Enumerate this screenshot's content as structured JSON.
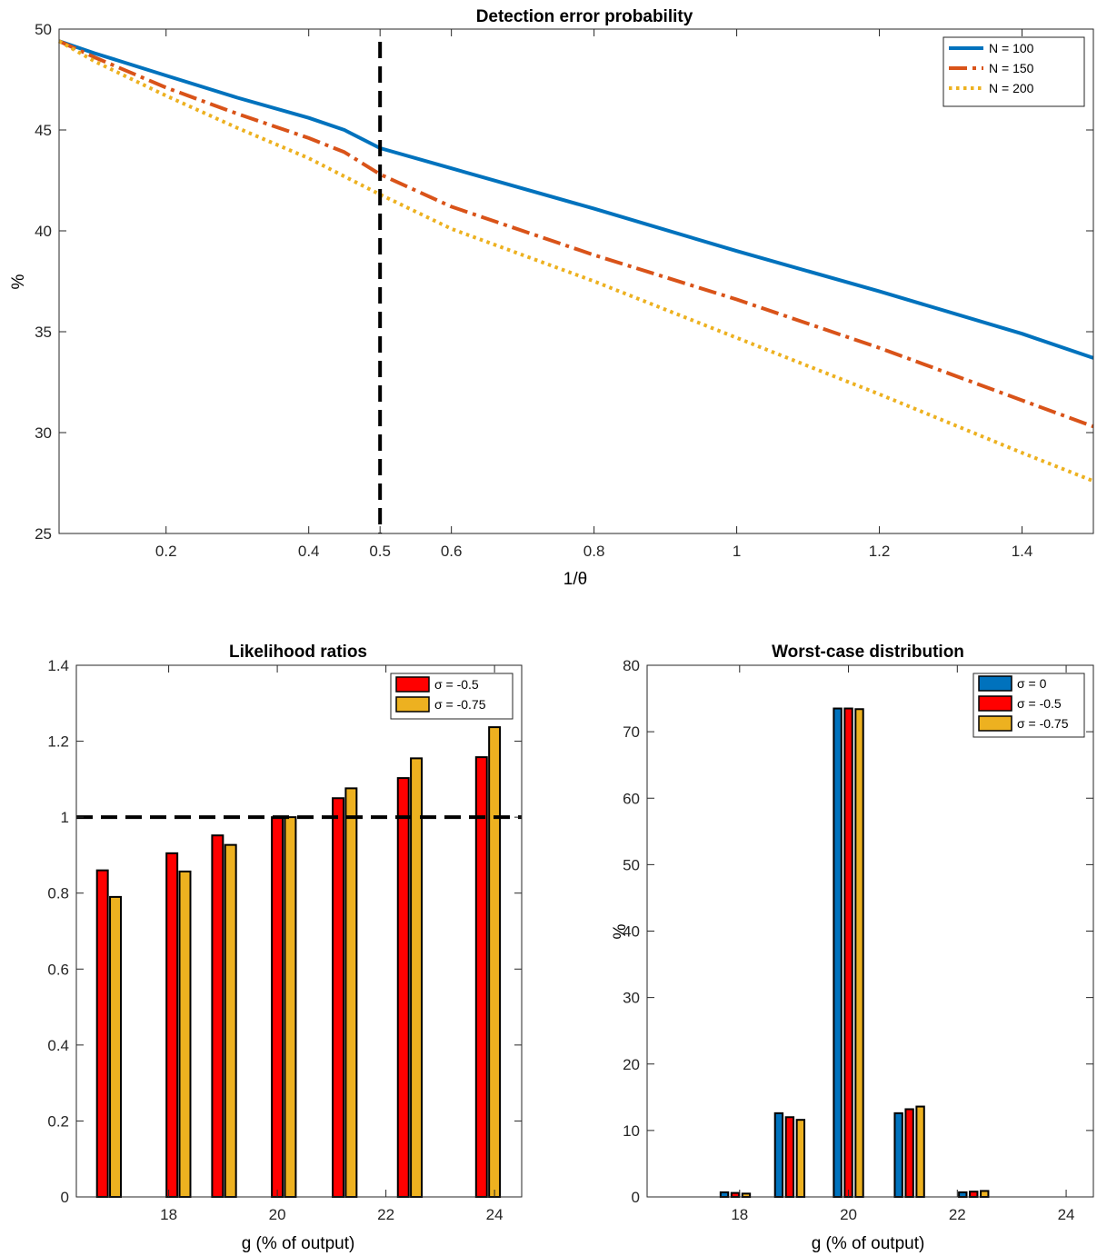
{
  "chart_data": [
    {
      "type": "line",
      "title": "Detection error probability",
      "xlabel": "1/θ",
      "ylabel": "%",
      "xlim": [
        0.05,
        1.5
      ],
      "ylim": [
        25,
        50
      ],
      "xticks": [
        0.2,
        0.4,
        0.5,
        0.6,
        0.8,
        1,
        1.2,
        1.4
      ],
      "xtick_labels": [
        "0.2",
        "0.4",
        "0.5",
        "0.6",
        "0.8",
        "1",
        "1.2",
        "1.4"
      ],
      "yticks": [
        25,
        30,
        35,
        40,
        45,
        50
      ],
      "ytick_labels": [
        "25",
        "30",
        "35",
        "40",
        "45",
        "50"
      ],
      "vline": 0.5,
      "legend_position": "top-right",
      "x": [
        0.05,
        0.1,
        0.2,
        0.3,
        0.4,
        0.45,
        0.5,
        0.6,
        0.8,
        1.0,
        1.2,
        1.4,
        1.5
      ],
      "series": [
        {
          "name": "N = 100",
          "color": "#0072BD",
          "dash": "solid",
          "values": [
            49.4,
            48.8,
            47.7,
            46.6,
            45.6,
            45.0,
            44.1,
            43.1,
            41.1,
            39.0,
            37.0,
            34.9,
            33.7
          ]
        },
        {
          "name": "N = 150",
          "color": "#D95319",
          "dash": "dashdot",
          "values": [
            49.4,
            48.6,
            47.1,
            45.8,
            44.6,
            43.9,
            42.8,
            41.2,
            38.8,
            36.6,
            34.2,
            31.6,
            30.3
          ]
        },
        {
          "name": "N = 200",
          "color": "#EDB120",
          "dash": "dotted",
          "values": [
            49.4,
            48.4,
            46.7,
            45.1,
            43.6,
            42.7,
            41.8,
            40.1,
            37.5,
            34.7,
            31.9,
            29.0,
            27.6
          ]
        }
      ]
    },
    {
      "type": "bar",
      "title": "Likelihood ratios",
      "xlabel": "g (% of output)",
      "ylabel": "",
      "xlim": [
        16.3,
        24.5
      ],
      "ylim": [
        0,
        1.4
      ],
      "xticks": [
        18,
        20,
        22,
        24
      ],
      "xtick_labels": [
        "18",
        "20",
        "22",
        "24"
      ],
      "yticks": [
        0,
        0.2,
        0.4,
        0.6,
        0.8,
        1,
        1.2,
        1.4
      ],
      "ytick_labels": [
        "0",
        "0.2",
        "0.4",
        "0.6",
        "0.8",
        "1",
        "1.2",
        "1.4"
      ],
      "hline": 1,
      "legend_position": "top-right",
      "bar_width": 0.2,
      "series": [
        {
          "name": "σ = -0.5",
          "color": "#FF0000",
          "x": [
            16.78,
            18.06,
            18.9,
            20.0,
            21.12,
            22.32,
            23.76
          ],
          "values": [
            0.86,
            0.905,
            0.952,
            1.0,
            1.05,
            1.103,
            1.158
          ]
        },
        {
          "name": "σ = -0.75",
          "color": "#EDB120",
          "x": [
            17.02,
            18.3,
            19.14,
            20.24,
            21.36,
            22.56,
            24.0
          ],
          "values": [
            0.79,
            0.857,
            0.927,
            1.0,
            1.076,
            1.155,
            1.237
          ]
        }
      ]
    },
    {
      "type": "bar",
      "title": "Worst-case distribution",
      "xlabel": "g (% of output)",
      "ylabel": "%",
      "xlim": [
        16.3,
        24.5
      ],
      "ylim": [
        0,
        80
      ],
      "xticks": [
        18,
        20,
        22,
        24
      ],
      "xtick_labels": [
        "18",
        "20",
        "22",
        "24"
      ],
      "yticks": [
        0,
        10,
        20,
        30,
        40,
        50,
        60,
        70,
        80
      ],
      "ytick_labels": [
        "0",
        "10",
        "20",
        "30",
        "40",
        "50",
        "60",
        "70",
        "80"
      ],
      "legend_position": "top-right",
      "bar_width": 0.14,
      "series": [
        {
          "name": "σ = 0",
          "color": "#0072BD",
          "x": [
            16.6,
            17.72,
            18.72,
            19.8,
            20.92,
            22.1,
            23.52
          ],
          "values": [
            0,
            0.7,
            12.6,
            73.5,
            12.6,
            0.7,
            0
          ]
        },
        {
          "name": "σ = -0.5",
          "color": "#FF0000",
          "x": [
            16.8,
            17.92,
            18.92,
            20.0,
            21.12,
            22.3,
            23.72
          ],
          "values": [
            0,
            0.6,
            12.0,
            73.5,
            13.2,
            0.8,
            0
          ]
        },
        {
          "name": "σ = -0.75",
          "color": "#EDB120",
          "x": [
            17.0,
            18.12,
            19.12,
            20.2,
            21.32,
            22.5,
            23.92
          ],
          "values": [
            0,
            0.5,
            11.6,
            73.4,
            13.6,
            0.9,
            0
          ]
        }
      ]
    }
  ]
}
